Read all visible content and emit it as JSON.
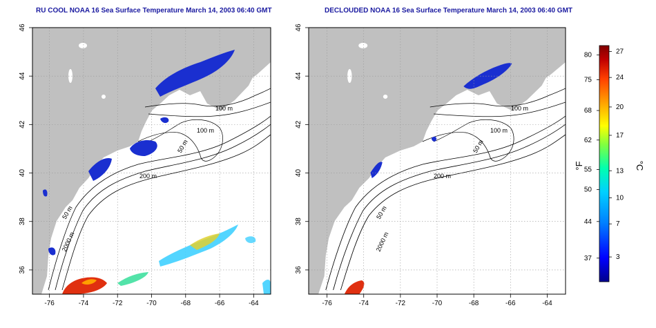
{
  "panels": [
    {
      "title": "RU COOL NOAA 16 Sea Surface Temperature March 14, 2003 06:40 GMT",
      "contour_labels": [
        "100 m",
        "100 m",
        "50 m",
        "200 m",
        "50 m",
        "2000 m"
      ]
    },
    {
      "title": "DECLOUDED NOAA 16 Sea Surface Temperature March 14, 2003 06:40 GMT",
      "contour_labels": [
        "100 m",
        "100 m",
        "50 m",
        "200 m",
        "50 m",
        "2000 m"
      ]
    }
  ],
  "axes": {
    "x_ticks": [
      "-76",
      "-74",
      "-72",
      "-70",
      "-68",
      "-66",
      "-64"
    ],
    "y_ticks": [
      "36",
      "38",
      "40",
      "42",
      "44",
      "46"
    ]
  },
  "colorbar": {
    "fahrenheit_label": "°F",
    "celsius_label": "°C",
    "fahrenheit_ticks": [
      "80",
      "75",
      "68",
      "62",
      "55",
      "50",
      "44",
      "37"
    ],
    "celsius_ticks": [
      "27",
      "24",
      "20",
      "17",
      "13",
      "10",
      "7",
      "3"
    ],
    "colors": [
      "#00008b",
      "#0000ff",
      "#0080ff",
      "#00d0ff",
      "#00ffb0",
      "#80ff40",
      "#ffff00",
      "#ffa000",
      "#ff4000",
      "#c00000",
      "#800000"
    ]
  },
  "colors": {
    "land": "#c0c0c0",
    "ocean": "#ffffff",
    "cold": "#1a2fd0",
    "warm": "#e03010"
  }
}
